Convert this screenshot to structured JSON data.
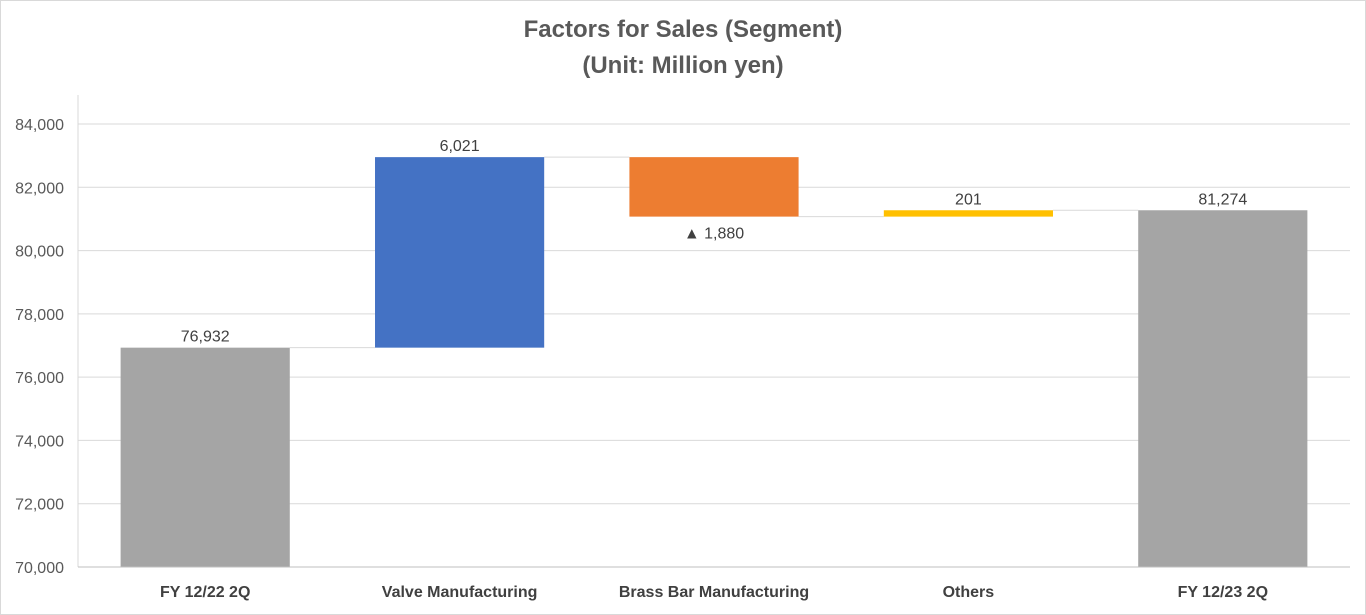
{
  "chart_data": {
    "type": "waterfall",
    "title": "Factors for Sales (Segment)",
    "subtitle": "(Unit: Million yen)",
    "categories": [
      "FY 12/22 2Q",
      "Valve Manufacturing",
      "Brass Bar Manufacturing",
      "Others",
      "FY 12/23 2Q"
    ],
    "values": [
      76932,
      6021,
      -1880,
      201,
      81274
    ],
    "kinds": [
      "total",
      "increase",
      "decrease",
      "increase",
      "total"
    ],
    "data_labels": [
      "76,932",
      "6,021",
      "▲ 1,880",
      "201",
      "81,274"
    ],
    "colors": [
      "#a5a5a5",
      "#4472c4",
      "#ed7d31",
      "#ffc000",
      "#a5a5a5"
    ],
    "connector_color": "#d9d9d9",
    "ylim": [
      70000,
      84000
    ],
    "yticks": [
      70000,
      72000,
      74000,
      76000,
      78000,
      80000,
      82000,
      84000
    ],
    "ytick_labels": [
      "70,000",
      "72,000",
      "74,000",
      "76,000",
      "78,000",
      "80,000",
      "82,000",
      "84,000"
    ],
    "grid": true,
    "legend": "none"
  }
}
